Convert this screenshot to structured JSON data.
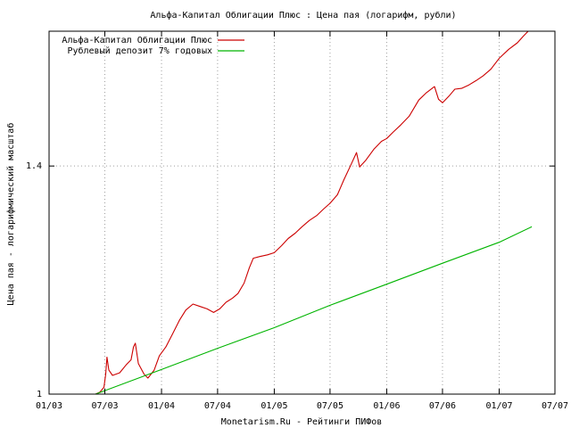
{
  "chart_data": {
    "type": "line",
    "title": "Альфа-Капитал Облигации Плюс : Цена пая (логарифм, рубли)",
    "xlabel": "Monetarism.Ru - Рейтинги ПИФов",
    "ylabel": "Цена пая - логарифмический масштаб",
    "grid": true,
    "legend": {
      "position": "top-left"
    },
    "x_axis": {
      "scale": "time",
      "range": [
        "2003-01-01",
        "2007-07-01"
      ],
      "ticks": [
        {
          "value": "2003-01-01",
          "label": "01/03"
        },
        {
          "value": "2003-07-01",
          "label": "07/03"
        },
        {
          "value": "2004-01-01",
          "label": "01/04"
        },
        {
          "value": "2004-07-01",
          "label": "07/04"
        },
        {
          "value": "2005-01-01",
          "label": "01/05"
        },
        {
          "value": "2005-07-01",
          "label": "07/05"
        },
        {
          "value": "2006-01-01",
          "label": "01/06"
        },
        {
          "value": "2006-07-01",
          "label": "07/06"
        },
        {
          "value": "2007-01-01",
          "label": "01/07"
        },
        {
          "value": "2007-07-01",
          "label": "07/07"
        }
      ]
    },
    "y_axis": {
      "scale": "log",
      "range": [
        1,
        1.708
      ],
      "ticks": [
        {
          "value": 1,
          "label": "1"
        },
        {
          "value": 1.4,
          "label": "1.4"
        }
      ]
    },
    "series": [
      {
        "name": "Альфа-Капитал Облигации Плюс",
        "color": "#cc0000",
        "points": [
          [
            "2003-06-01",
            1.0
          ],
          [
            "2003-06-15",
            1.003
          ],
          [
            "2003-06-28",
            1.01
          ],
          [
            "2003-07-04",
            1.03
          ],
          [
            "2003-07-08",
            1.056
          ],
          [
            "2003-07-14",
            1.036
          ],
          [
            "2003-07-26",
            1.028
          ],
          [
            "2003-08-18",
            1.032
          ],
          [
            "2003-09-08",
            1.044
          ],
          [
            "2003-09-24",
            1.052
          ],
          [
            "2003-10-02",
            1.072
          ],
          [
            "2003-10-08",
            1.078
          ],
          [
            "2003-10-18",
            1.046
          ],
          [
            "2003-11-05",
            1.03
          ],
          [
            "2003-11-18",
            1.024
          ],
          [
            "2003-12-08",
            1.036
          ],
          [
            "2003-12-25",
            1.058
          ],
          [
            "2004-01-15",
            1.072
          ],
          [
            "2004-02-05",
            1.092
          ],
          [
            "2004-02-28",
            1.115
          ],
          [
            "2004-03-20",
            1.132
          ],
          [
            "2004-04-12",
            1.142
          ],
          [
            "2004-05-05",
            1.138
          ],
          [
            "2004-05-28",
            1.134
          ],
          [
            "2004-06-18",
            1.128
          ],
          [
            "2004-07-08",
            1.134
          ],
          [
            "2004-07-28",
            1.145
          ],
          [
            "2004-08-18",
            1.152
          ],
          [
            "2004-09-05",
            1.16
          ],
          [
            "2004-09-25",
            1.178
          ],
          [
            "2004-10-12",
            1.205
          ],
          [
            "2004-10-25",
            1.222
          ],
          [
            "2004-11-15",
            1.225
          ],
          [
            "2004-12-10",
            1.228
          ],
          [
            "2005-01-01",
            1.232
          ],
          [
            "2005-01-25",
            1.245
          ],
          [
            "2005-02-15",
            1.258
          ],
          [
            "2005-03-10",
            1.268
          ],
          [
            "2005-04-01",
            1.28
          ],
          [
            "2005-04-25",
            1.292
          ],
          [
            "2005-05-20",
            1.302
          ],
          [
            "2005-06-10",
            1.314
          ],
          [
            "2005-07-01",
            1.325
          ],
          [
            "2005-07-25",
            1.342
          ],
          [
            "2005-08-15",
            1.372
          ],
          [
            "2005-09-05",
            1.4
          ],
          [
            "2005-09-25",
            1.428
          ],
          [
            "2005-10-05",
            1.398
          ],
          [
            "2005-10-25",
            1.412
          ],
          [
            "2005-11-20",
            1.435
          ],
          [
            "2005-12-15",
            1.452
          ],
          [
            "2006-01-01",
            1.458
          ],
          [
            "2006-01-22",
            1.472
          ],
          [
            "2006-02-15",
            1.487
          ],
          [
            "2006-03-15",
            1.507
          ],
          [
            "2006-04-15",
            1.543
          ],
          [
            "2006-05-10",
            1.56
          ],
          [
            "2006-06-05",
            1.574
          ],
          [
            "2006-06-18",
            1.545
          ],
          [
            "2006-07-01",
            1.537
          ],
          [
            "2006-07-22",
            1.552
          ],
          [
            "2006-08-10",
            1.568
          ],
          [
            "2006-09-01",
            1.57
          ],
          [
            "2006-09-25",
            1.578
          ],
          [
            "2006-10-18",
            1.588
          ],
          [
            "2006-11-10",
            1.599
          ],
          [
            "2006-12-05",
            1.615
          ],
          [
            "2007-01-01",
            1.641
          ],
          [
            "2007-02-01",
            1.663
          ],
          [
            "2007-03-01",
            1.679
          ],
          [
            "2007-03-20",
            1.695
          ],
          [
            "2007-04-05",
            1.708
          ]
        ]
      },
      {
        "name": "Рублевый депозит 7% годовых",
        "color": "#00b400",
        "points": [
          [
            "2003-06-01",
            1.0
          ],
          [
            "2004-01-01",
            1.037
          ],
          [
            "2004-07-01",
            1.07
          ],
          [
            "2005-01-01",
            1.103
          ],
          [
            "2005-07-01",
            1.14
          ],
          [
            "2006-01-01",
            1.176
          ],
          [
            "2006-07-01",
            1.213
          ],
          [
            "2007-01-01",
            1.251
          ],
          [
            "2007-04-17",
            1.28
          ]
        ]
      }
    ]
  }
}
